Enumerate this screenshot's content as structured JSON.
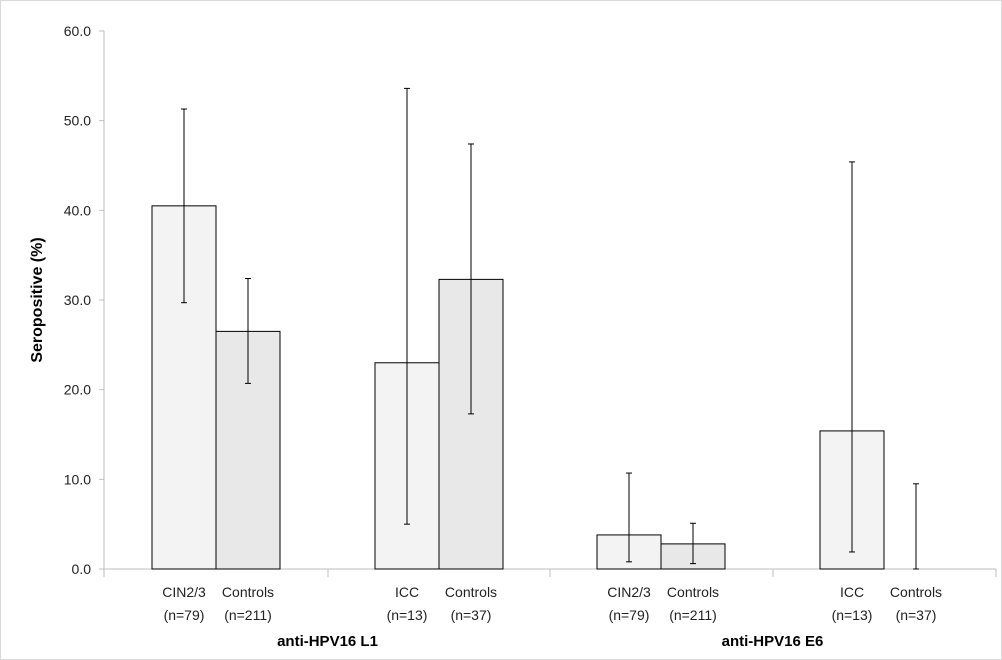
{
  "chart_data": {
    "type": "bar",
    "title": "",
    "xlabel": "",
    "ylabel": "Seropositive (%)",
    "ylim": [
      0,
      60
    ],
    "yticks": [
      "0.0",
      "10.0",
      "20.0",
      "30.0",
      "40.0",
      "50.0",
      "60.0"
    ],
    "grid": false,
    "legend": "none",
    "colors": {
      "case_bar": "#f3f3f3",
      "control_bar": "#e8e8e8",
      "stroke": "#000000"
    },
    "groups": [
      {
        "label": "anti-HPV16 L1",
        "pairs": [
          {
            "bars": [
              {
                "label": "CIN2/3",
                "n": "(n=79)",
                "value": 40.5,
                "ci": [
                  29.7,
                  51.3
                ],
                "role": "case"
              },
              {
                "label": "Controls",
                "n": "(n=211)",
                "value": 26.5,
                "ci": [
                  20.7,
                  32.4
                ],
                "role": "control"
              }
            ]
          },
          {
            "bars": [
              {
                "label": "ICC",
                "n": "(n=13)",
                "value": 23.0,
                "ci": [
                  5.0,
                  53.6
                ],
                "role": "case"
              },
              {
                "label": "Controls",
                "n": "(n=37)",
                "value": 32.3,
                "ci": [
                  17.3,
                  47.4
                ],
                "role": "control"
              }
            ]
          }
        ]
      },
      {
        "label": "anti-HPV16 E6",
        "pairs": [
          {
            "bars": [
              {
                "label": "CIN2/3",
                "n": "(n=79)",
                "value": 3.8,
                "ci": [
                  0.8,
                  10.7
                ],
                "role": "case"
              },
              {
                "label": "Controls",
                "n": "(n=211)",
                "value": 2.8,
                "ci": [
                  0.6,
                  5.1
                ],
                "role": "control"
              }
            ]
          },
          {
            "bars": [
              {
                "label": "ICC",
                "n": "(n=13)",
                "value": 15.4,
                "ci": [
                  1.9,
                  45.4
                ],
                "role": "case"
              },
              {
                "label": "Controls",
                "n": "(n=37)",
                "value": 0.0,
                "ci": [
                  0.0,
                  9.5
                ],
                "role": "control"
              }
            ]
          }
        ]
      }
    ]
  }
}
